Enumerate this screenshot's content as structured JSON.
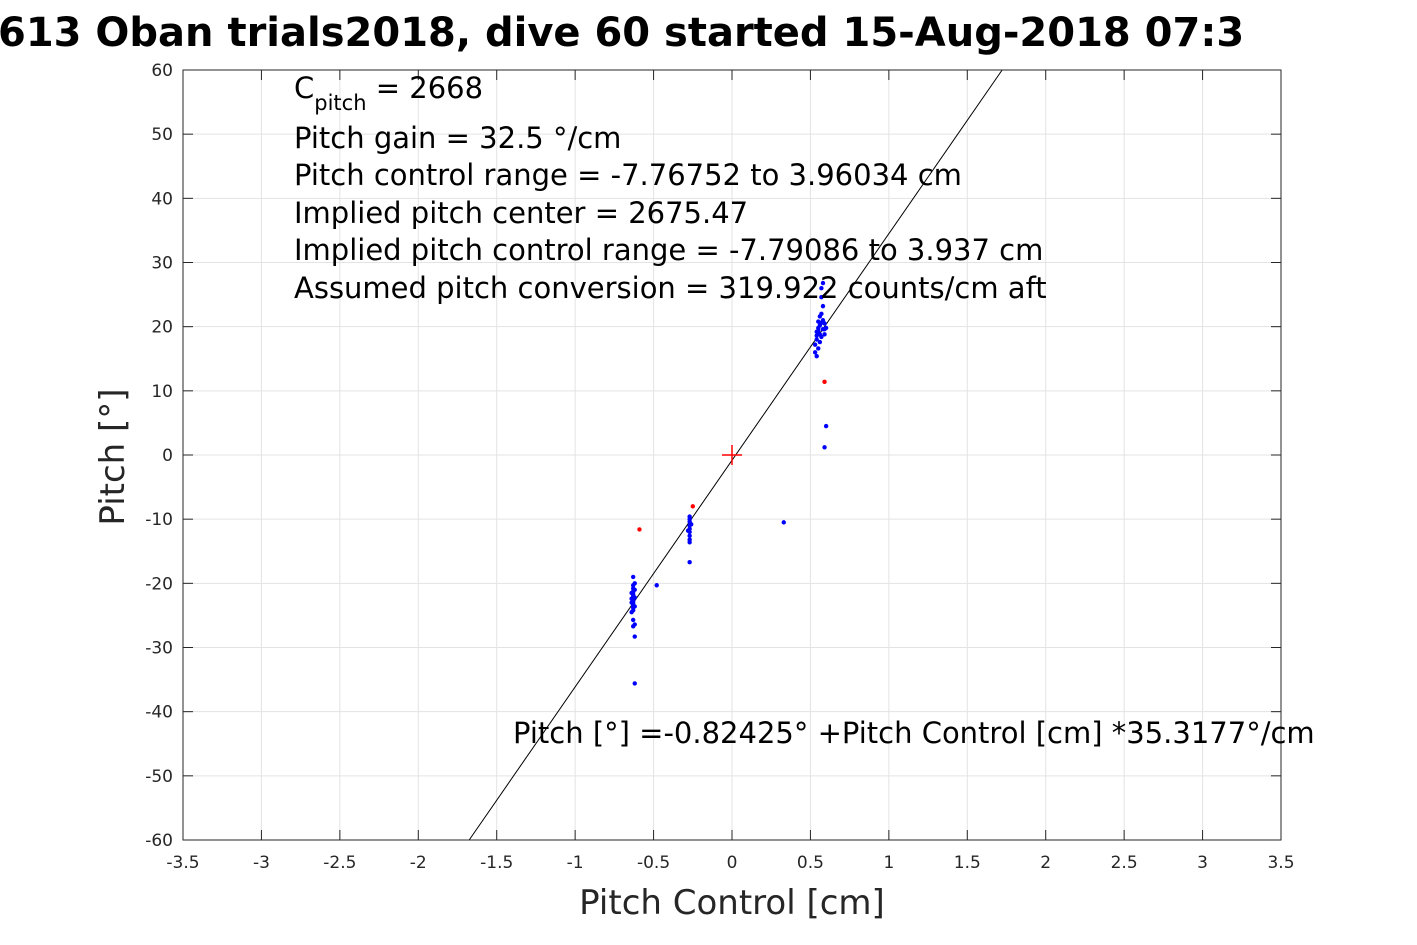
{
  "chart_data": {
    "type": "scatter",
    "title": "613 Oban trials2018, dive 60 started 15-Aug-2018 07:3",
    "xlabel": "Pitch Control [cm]",
    "ylabel": "Pitch [°]",
    "xlim": [
      -3.5,
      3.5
    ],
    "ylim": [
      -60,
      60
    ],
    "xticks": [
      -3.5,
      -3,
      -2.5,
      -2,
      -1.5,
      -1,
      -0.5,
      0,
      0.5,
      1,
      1.5,
      2,
      2.5,
      3,
      3.5
    ],
    "xtick_labels": [
      "-3.5",
      "-3",
      "-2.5",
      "-2",
      "-1.5",
      "-1",
      "-0.5",
      "0",
      "0.5",
      "1",
      "1.5",
      "2",
      "2.5",
      "3",
      "3.5"
    ],
    "yticks": [
      60,
      50,
      40,
      30,
      20,
      10,
      0,
      -10,
      -20,
      -30,
      -40,
      -50,
      -60
    ],
    "ytick_labels": [
      "60",
      "50",
      "40",
      "30",
      "20",
      "10",
      "0",
      "-10",
      "-20",
      "-30",
      "-40",
      "-50",
      "-60"
    ],
    "grid": true,
    "colors": {
      "data": "#0000ff",
      "outliers": "#ff0000",
      "center": "#ff0000",
      "fit": "#000000"
    },
    "series": [
      {
        "color": "#0000ff",
        "points": [
          [
            -0.63,
            -20.3
          ],
          [
            -0.63,
            -20.8
          ],
          [
            -0.63,
            -21.3
          ],
          [
            -0.63,
            -21.7
          ],
          [
            -0.63,
            -22.0
          ],
          [
            -0.63,
            -22.3
          ],
          [
            -0.63,
            -22.6
          ],
          [
            -0.63,
            -22.9
          ],
          [
            -0.63,
            -23.2
          ],
          [
            -0.63,
            -23.5
          ],
          [
            -0.63,
            -23.8
          ],
          [
            -0.63,
            -24.2
          ],
          [
            -0.64,
            -21.5
          ],
          [
            -0.64,
            -22.4
          ],
          [
            -0.64,
            -23.0
          ],
          [
            -0.64,
            -24.5
          ],
          [
            -0.62,
            -21.0
          ],
          [
            -0.62,
            -22.2
          ],
          [
            -0.62,
            -23.6
          ],
          [
            -0.62,
            -20.0
          ],
          [
            -0.63,
            -19.0
          ],
          [
            -0.63,
            -25.7
          ],
          [
            -0.62,
            -26.4
          ],
          [
            -0.63,
            -26.7
          ],
          [
            -0.62,
            -28.3
          ],
          [
            -0.62,
            -35.6
          ],
          [
            -0.48,
            -20.3
          ],
          [
            -0.27,
            -9.6
          ],
          [
            -0.27,
            -10.0
          ],
          [
            -0.27,
            -10.4
          ],
          [
            -0.27,
            -11.0
          ],
          [
            -0.27,
            -11.5
          ],
          [
            -0.27,
            -12.0
          ],
          [
            -0.27,
            -12.6
          ],
          [
            -0.27,
            -13.2
          ],
          [
            -0.27,
            -13.6
          ],
          [
            -0.26,
            -10.8
          ],
          [
            -0.28,
            -11.8
          ],
          [
            -0.27,
            -16.7
          ],
          [
            0.33,
            -10.5
          ],
          [
            0.53,
            17.2
          ],
          [
            0.54,
            18.0
          ],
          [
            0.54,
            18.6
          ],
          [
            0.55,
            19.0
          ],
          [
            0.55,
            19.4
          ],
          [
            0.55,
            19.8
          ],
          [
            0.56,
            20.2
          ],
          [
            0.56,
            17.6
          ],
          [
            0.54,
            19.2
          ],
          [
            0.57,
            18.4
          ],
          [
            0.57,
            20.6
          ],
          [
            0.58,
            21.0
          ],
          [
            0.58,
            19.6
          ],
          [
            0.56,
            21.6
          ],
          [
            0.57,
            22.0
          ],
          [
            0.55,
            16.6
          ],
          [
            0.53,
            16.0
          ],
          [
            0.54,
            15.4
          ],
          [
            0.58,
            23.2
          ],
          [
            0.57,
            24.6
          ],
          [
            0.57,
            26.0
          ],
          [
            0.58,
            26.8
          ],
          [
            0.59,
            19.6
          ],
          [
            0.59,
            18.8
          ],
          [
            0.6,
            19.8
          ],
          [
            0.59,
            20.5
          ],
          [
            0.56,
            18.8
          ],
          [
            0.55,
            20.8
          ],
          [
            0.6,
            4.5
          ],
          [
            0.59,
            1.2
          ]
        ]
      },
      {
        "color": "#ff0000",
        "points": [
          [
            -0.59,
            -11.6
          ],
          [
            -0.25,
            -8.0
          ],
          [
            0.59,
            11.4
          ]
        ]
      }
    ],
    "center_marker": [
      0,
      0
    ],
    "fit_line": {
      "intercept": -0.82425,
      "slope": 35.3177
    },
    "annotations": {
      "c_pitch_main": "C",
      "c_pitch_sub": "pitch",
      "c_pitch_rest": " = 2668",
      "gain": "Pitch gain = 32.5 °/cm",
      "control_range": "Pitch control range = -7.76752 to 3.96034 cm",
      "implied_center": "Implied pitch center = 2675.47",
      "implied_range": "Implied pitch control range = -7.79086 to 3.937 cm",
      "conversion": "Assumed pitch conversion = 319.922 counts/cm aft",
      "fit_equation": "Pitch [°] =-0.82425° +Pitch Control [cm] *35.3177°/cm"
    }
  }
}
